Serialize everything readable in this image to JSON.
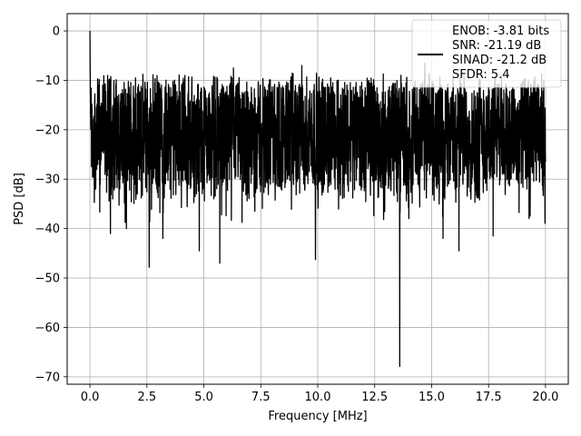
{
  "chart_data": {
    "type": "line",
    "title": "",
    "xlabel": "Frequency [MHz]",
    "ylabel": "PSD [dB]",
    "xlim": [
      -1.0,
      21.0
    ],
    "ylim": [
      -71.5,
      3.5
    ],
    "xticks": [
      0.0,
      2.5,
      5.0,
      7.5,
      10.0,
      12.5,
      15.0,
      17.5,
      20.0
    ],
    "xtick_labels": [
      "0.0",
      "2.5",
      "5.0",
      "7.5",
      "10.0",
      "12.5",
      "15.0",
      "17.5",
      "20.0"
    ],
    "yticks": [
      0,
      -10,
      -20,
      -30,
      -40,
      -50,
      -60,
      -70
    ],
    "ytick_labels": [
      "0",
      "−10",
      "−20",
      "−30",
      "−40",
      "−50",
      "−60",
      "−70"
    ],
    "grid": true,
    "legend_position": "upper-right",
    "series": [
      {
        "name": "ENOB: -3.81 bits\nSNR: -21.19 dB\nSINAD: -21.2 dB\nSFDR: 5.4",
        "color": "#000000",
        "x_range": [
          0.0,
          20.0
        ],
        "baseline": -20,
        "upper_envelope": -10,
        "lower_envelope": -33,
        "notable_points": [
          {
            "x": 0.0,
            "y": 0.0
          },
          {
            "x": 0.3,
            "y": -28
          },
          {
            "x": 0.9,
            "y": -41
          },
          {
            "x": 1.6,
            "y": -40
          },
          {
            "x": 2.6,
            "y": -47.8
          },
          {
            "x": 3.2,
            "y": -42
          },
          {
            "x": 4.8,
            "y": -44.5
          },
          {
            "x": 5.7,
            "y": -47
          },
          {
            "x": 9.9,
            "y": -46.3
          },
          {
            "x": 13.6,
            "y": -67.9
          },
          {
            "x": 15.5,
            "y": -42
          },
          {
            "x": 16.2,
            "y": -44.5
          },
          {
            "x": 17.7,
            "y": -41.5
          },
          {
            "x": 2.0,
            "y": -9.5
          },
          {
            "x": 6.3,
            "y": -7.5
          },
          {
            "x": 9.3,
            "y": -7.0
          },
          {
            "x": 14.7,
            "y": -6.5
          }
        ]
      }
    ]
  }
}
